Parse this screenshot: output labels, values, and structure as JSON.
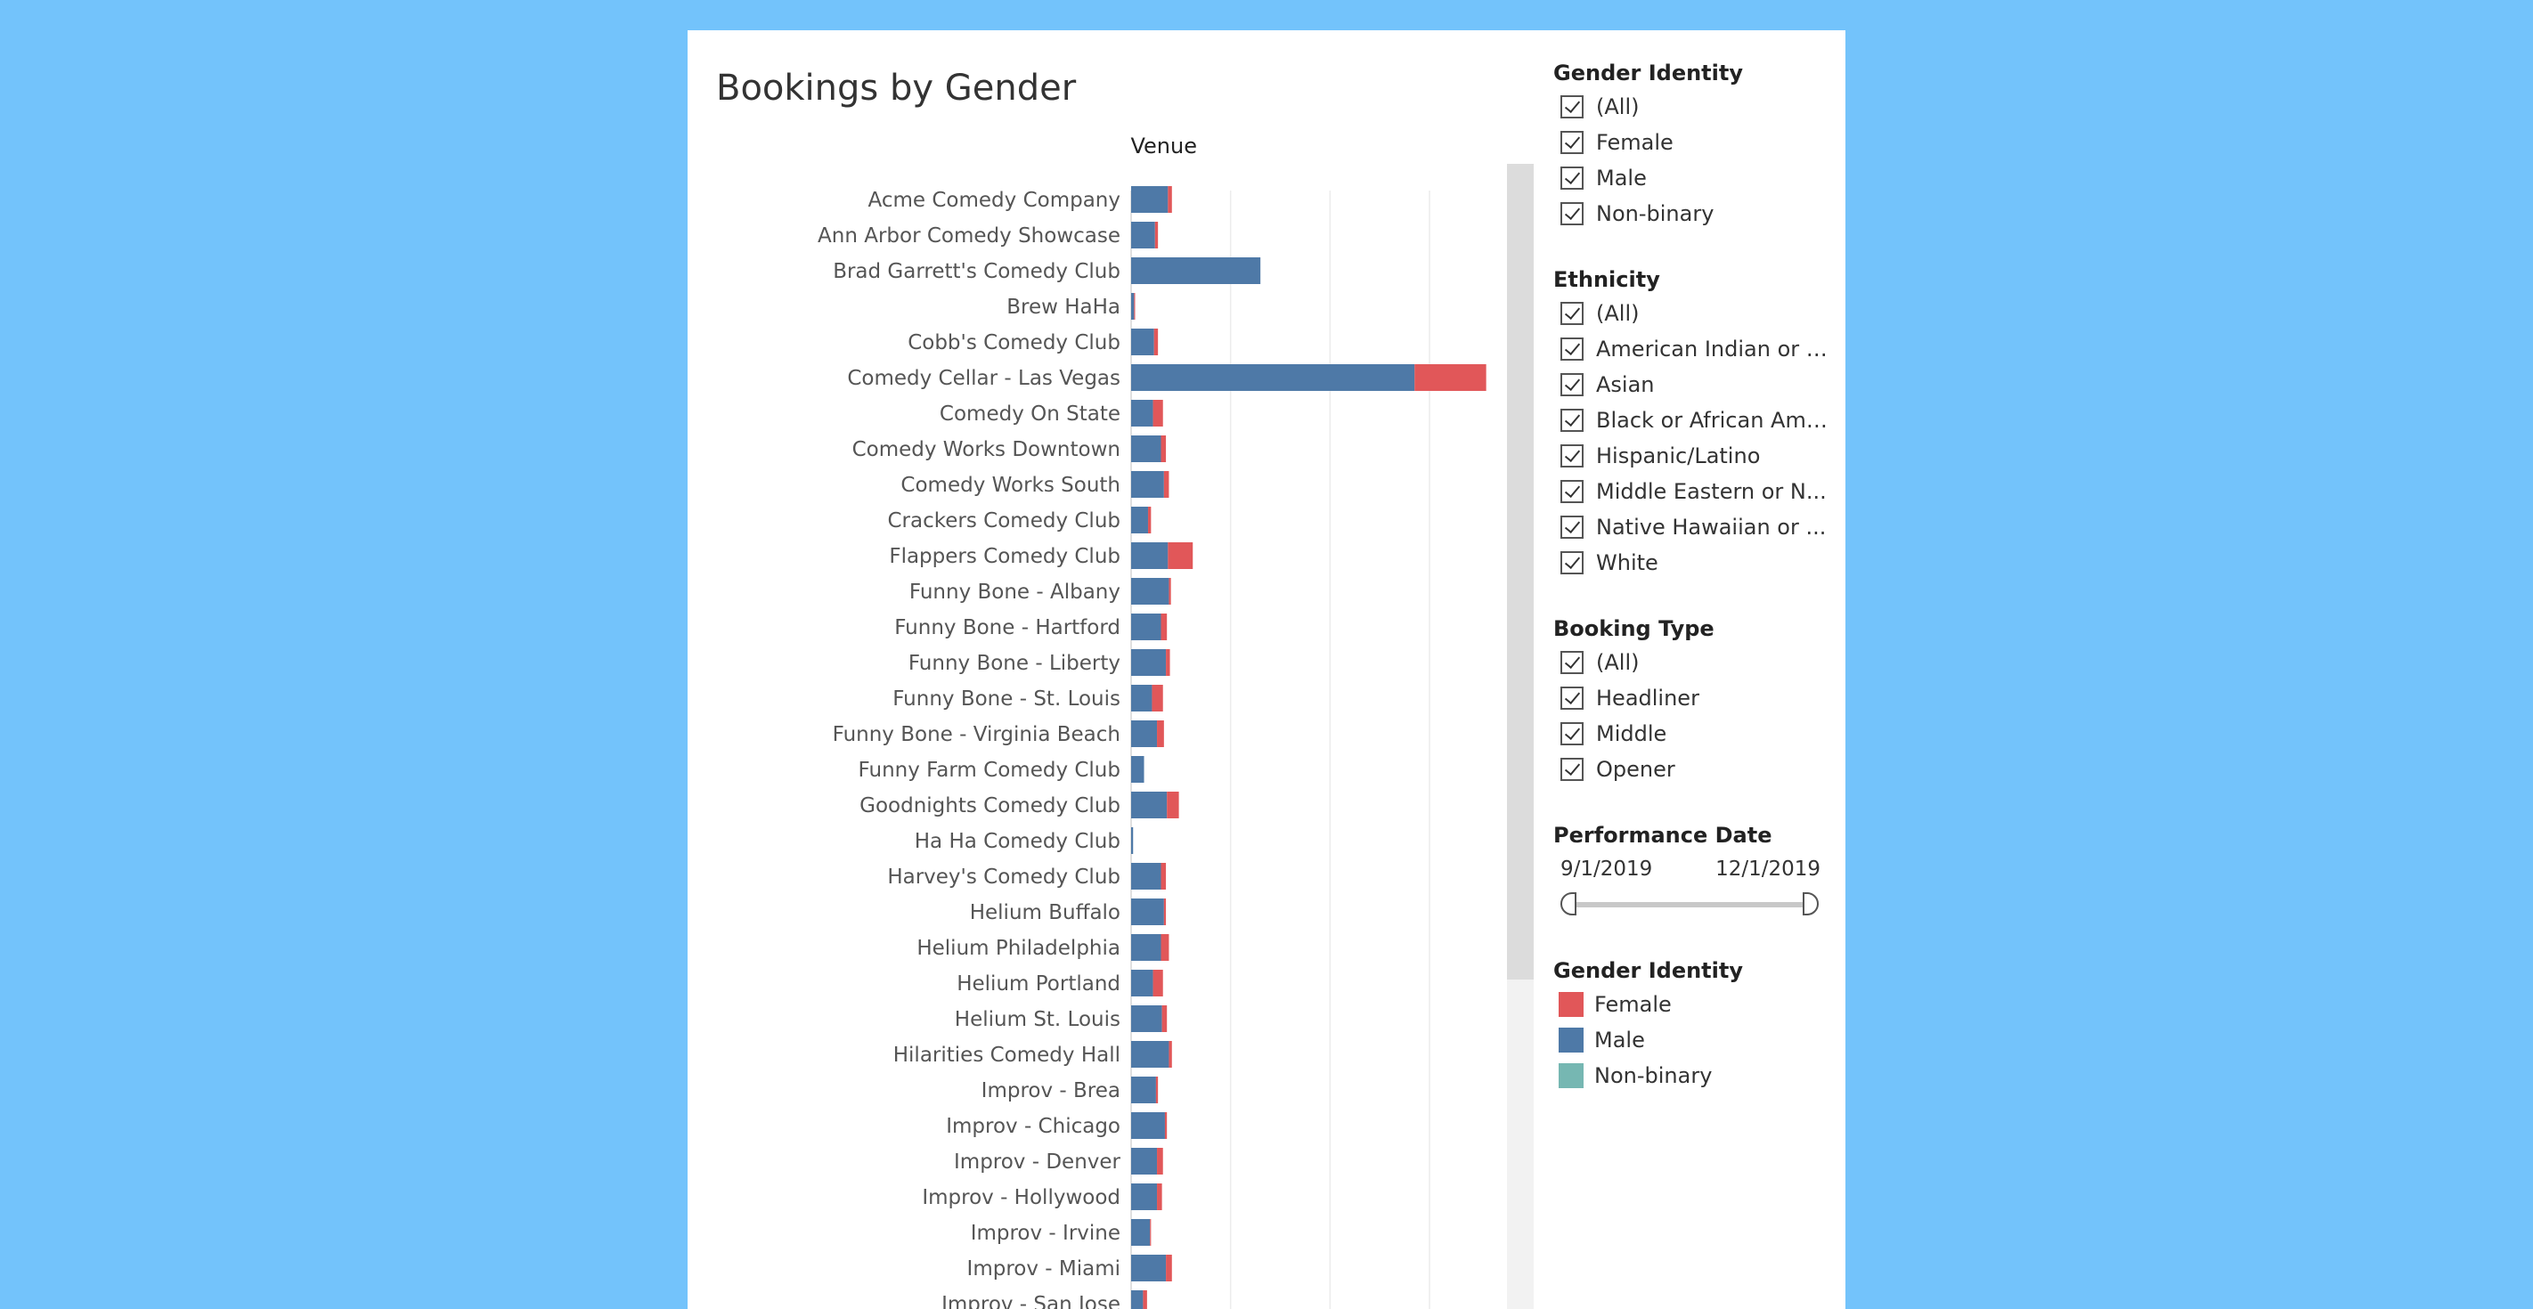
{
  "chart_data": {
    "type": "bar",
    "orientation": "horizontal",
    "stacked": true,
    "title": "Bookings by Gender",
    "ylabel": "Venue",
    "xlabel": "",
    "xlim": [
      0,
      36
    ],
    "grid": true,
    "legend_placement": "right",
    "categories": [
      "Acme Comedy Company",
      "Ann Arbor Comedy Showcase",
      "Brad Garrett's Comedy Club",
      "Brew HaHa",
      "Cobb's Comedy Club",
      "Comedy Cellar - Las Vegas",
      "Comedy On State",
      "Comedy Works Downtown",
      "Comedy Works South",
      "Crackers Comedy Club",
      "Flappers Comedy Club",
      "Funny Bone - Albany",
      "Funny Bone - Hartford",
      "Funny Bone - Liberty",
      "Funny Bone - St. Louis",
      "Funny Bone - Virginia Beach",
      "Funny Farm Comedy Club",
      "Goodnights Comedy Club",
      "Ha Ha Comedy Club",
      "Harvey's Comedy Club",
      "Helium Buffalo",
      "Helium Philadelphia",
      "Helium Portland",
      "Helium St. Louis",
      "Hilarities Comedy Hall",
      "Improv - Brea",
      "Improv - Chicago",
      "Improv - Denver",
      "Improv - Hollywood",
      "Improv - Irvine",
      "Improv - Miami",
      "Improv - San Jose"
    ],
    "series": [
      {
        "name": "Male",
        "color": "#4e79a7",
        "values": [
          3.7,
          2.4,
          13,
          0.3,
          2.3,
          28.5,
          2.2,
          3,
          3.3,
          1.7,
          3.7,
          3.8,
          3,
          3.5,
          2.1,
          2.6,
          1.3,
          3.6,
          0.2,
          3,
          3.3,
          3,
          2.2,
          3.1,
          3.8,
          2.5,
          3.4,
          2.6,
          2.6,
          1.9,
          3.5,
          1.2
        ]
      },
      {
        "name": "Female",
        "color": "#e15759",
        "values": [
          0.4,
          0.3,
          0,
          0.1,
          0.4,
          7.2,
          1,
          0.5,
          0.5,
          0.3,
          2.5,
          0.2,
          0.6,
          0.4,
          1.1,
          0.7,
          0,
          1.2,
          0,
          0.5,
          0.2,
          0.8,
          1,
          0.5,
          0.3,
          0.2,
          0.2,
          0.6,
          0.5,
          0.1,
          0.6,
          0.4
        ]
      },
      {
        "name": "Non-binary",
        "color": "#76b7b2",
        "values": [
          0,
          0,
          0,
          0,
          0,
          0,
          0,
          0,
          0,
          0,
          0,
          0,
          0,
          0,
          0,
          0,
          0,
          0,
          0,
          0,
          0,
          0,
          0,
          0,
          0,
          0,
          0,
          0,
          0,
          0,
          0,
          0
        ]
      }
    ]
  },
  "filters": {
    "gender": {
      "title": "Gender Identity",
      "items": [
        "(All)",
        "Female",
        "Male",
        "Non-binary"
      ]
    },
    "ethnicity": {
      "title": "Ethnicity",
      "items": [
        "(All)",
        "American Indian or A...",
        "Asian",
        "Black or African Ame...",
        "Hispanic/Latino",
        "Middle Eastern or N...",
        "Native Hawaiian or ...",
        "White"
      ]
    },
    "booking_type": {
      "title": "Booking Type",
      "items": [
        "(All)",
        "Headliner",
        "Middle",
        "Opener"
      ]
    },
    "performance_date": {
      "title": "Performance Date",
      "start": "9/1/2019",
      "end": "12/1/2019"
    }
  },
  "legend": {
    "title": "Gender Identity",
    "items": [
      {
        "label": "Female",
        "color": "#e15759"
      },
      {
        "label": "Male",
        "color": "#4e79a7"
      },
      {
        "label": "Non-binary",
        "color": "#76b7b2"
      }
    ]
  }
}
